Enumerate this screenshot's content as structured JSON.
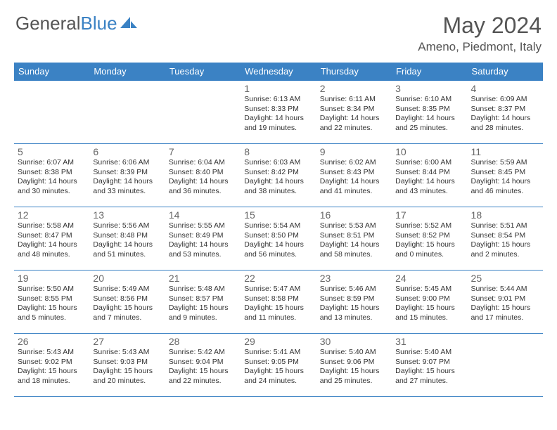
{
  "brand": {
    "part1": "General",
    "part2": "Blue"
  },
  "title": {
    "month": "May 2024",
    "location": "Ameno, Piedmont, Italy"
  },
  "colors": {
    "accent": "#3b82c4",
    "text": "#555",
    "data": "#333",
    "bg": "#ffffff"
  },
  "weekdays": [
    "Sunday",
    "Monday",
    "Tuesday",
    "Wednesday",
    "Thursday",
    "Friday",
    "Saturday"
  ],
  "weeks": [
    [
      null,
      null,
      null,
      {
        "n": "1",
        "sr": "6:13 AM",
        "ss": "8:33 PM",
        "d1": "14 hours",
        "d2": "and 19 minutes."
      },
      {
        "n": "2",
        "sr": "6:11 AM",
        "ss": "8:34 PM",
        "d1": "14 hours",
        "d2": "and 22 minutes."
      },
      {
        "n": "3",
        "sr": "6:10 AM",
        "ss": "8:35 PM",
        "d1": "14 hours",
        "d2": "and 25 minutes."
      },
      {
        "n": "4",
        "sr": "6:09 AM",
        "ss": "8:37 PM",
        "d1": "14 hours",
        "d2": "and 28 minutes."
      }
    ],
    [
      {
        "n": "5",
        "sr": "6:07 AM",
        "ss": "8:38 PM",
        "d1": "14 hours",
        "d2": "and 30 minutes."
      },
      {
        "n": "6",
        "sr": "6:06 AM",
        "ss": "8:39 PM",
        "d1": "14 hours",
        "d2": "and 33 minutes."
      },
      {
        "n": "7",
        "sr": "6:04 AM",
        "ss": "8:40 PM",
        "d1": "14 hours",
        "d2": "and 36 minutes."
      },
      {
        "n": "8",
        "sr": "6:03 AM",
        "ss": "8:42 PM",
        "d1": "14 hours",
        "d2": "and 38 minutes."
      },
      {
        "n": "9",
        "sr": "6:02 AM",
        "ss": "8:43 PM",
        "d1": "14 hours",
        "d2": "and 41 minutes."
      },
      {
        "n": "10",
        "sr": "6:00 AM",
        "ss": "8:44 PM",
        "d1": "14 hours",
        "d2": "and 43 minutes."
      },
      {
        "n": "11",
        "sr": "5:59 AM",
        "ss": "8:45 PM",
        "d1": "14 hours",
        "d2": "and 46 minutes."
      }
    ],
    [
      {
        "n": "12",
        "sr": "5:58 AM",
        "ss": "8:47 PM",
        "d1": "14 hours",
        "d2": "and 48 minutes."
      },
      {
        "n": "13",
        "sr": "5:56 AM",
        "ss": "8:48 PM",
        "d1": "14 hours",
        "d2": "and 51 minutes."
      },
      {
        "n": "14",
        "sr": "5:55 AM",
        "ss": "8:49 PM",
        "d1": "14 hours",
        "d2": "and 53 minutes."
      },
      {
        "n": "15",
        "sr": "5:54 AM",
        "ss": "8:50 PM",
        "d1": "14 hours",
        "d2": "and 56 minutes."
      },
      {
        "n": "16",
        "sr": "5:53 AM",
        "ss": "8:51 PM",
        "d1": "14 hours",
        "d2": "and 58 minutes."
      },
      {
        "n": "17",
        "sr": "5:52 AM",
        "ss": "8:52 PM",
        "d1": "15 hours",
        "d2": "and 0 minutes."
      },
      {
        "n": "18",
        "sr": "5:51 AM",
        "ss": "8:54 PM",
        "d1": "15 hours",
        "d2": "and 2 minutes."
      }
    ],
    [
      {
        "n": "19",
        "sr": "5:50 AM",
        "ss": "8:55 PM",
        "d1": "15 hours",
        "d2": "and 5 minutes."
      },
      {
        "n": "20",
        "sr": "5:49 AM",
        "ss": "8:56 PM",
        "d1": "15 hours",
        "d2": "and 7 minutes."
      },
      {
        "n": "21",
        "sr": "5:48 AM",
        "ss": "8:57 PM",
        "d1": "15 hours",
        "d2": "and 9 minutes."
      },
      {
        "n": "22",
        "sr": "5:47 AM",
        "ss": "8:58 PM",
        "d1": "15 hours",
        "d2": "and 11 minutes."
      },
      {
        "n": "23",
        "sr": "5:46 AM",
        "ss": "8:59 PM",
        "d1": "15 hours",
        "d2": "and 13 minutes."
      },
      {
        "n": "24",
        "sr": "5:45 AM",
        "ss": "9:00 PM",
        "d1": "15 hours",
        "d2": "and 15 minutes."
      },
      {
        "n": "25",
        "sr": "5:44 AM",
        "ss": "9:01 PM",
        "d1": "15 hours",
        "d2": "and 17 minutes."
      }
    ],
    [
      {
        "n": "26",
        "sr": "5:43 AM",
        "ss": "9:02 PM",
        "d1": "15 hours",
        "d2": "and 18 minutes."
      },
      {
        "n": "27",
        "sr": "5:43 AM",
        "ss": "9:03 PM",
        "d1": "15 hours",
        "d2": "and 20 minutes."
      },
      {
        "n": "28",
        "sr": "5:42 AM",
        "ss": "9:04 PM",
        "d1": "15 hours",
        "d2": "and 22 minutes."
      },
      {
        "n": "29",
        "sr": "5:41 AM",
        "ss": "9:05 PM",
        "d1": "15 hours",
        "d2": "and 24 minutes."
      },
      {
        "n": "30",
        "sr": "5:40 AM",
        "ss": "9:06 PM",
        "d1": "15 hours",
        "d2": "and 25 minutes."
      },
      {
        "n": "31",
        "sr": "5:40 AM",
        "ss": "9:07 PM",
        "d1": "15 hours",
        "d2": "and 27 minutes."
      },
      null
    ]
  ],
  "labels": {
    "sunrise": "Sunrise:",
    "sunset": "Sunset:",
    "daylight": "Daylight:"
  }
}
